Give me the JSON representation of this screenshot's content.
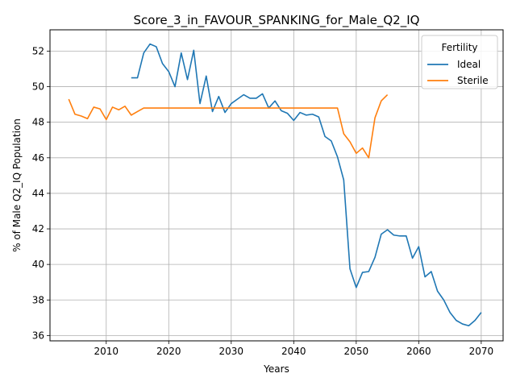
{
  "chart_data": {
    "type": "line",
    "title": "Score_3_in_FAVOUR_SPANKING_for_Male_Q2_IQ",
    "xlabel": "Years",
    "ylabel": "% of Male Q2_IQ Population",
    "xlim": [
      2001,
      2073.5
    ],
    "ylim": [
      35.7,
      53.2
    ],
    "xticks": [
      2010,
      2020,
      2030,
      2040,
      2050,
      2060,
      2070
    ],
    "yticks": [
      36,
      38,
      40,
      42,
      44,
      46,
      48,
      50,
      52
    ],
    "grid": true,
    "legend": {
      "title": "Fertility",
      "placement": "top-right"
    },
    "series": [
      {
        "name": "Ideal",
        "color": "#1f77b4",
        "x": [
          2014,
          2015,
          2016,
          2017,
          2018,
          2019,
          2020,
          2021,
          2022,
          2023,
          2024,
          2025,
          2026,
          2027,
          2028,
          2029,
          2030,
          2031,
          2032,
          2033,
          2034,
          2035,
          2036,
          2037,
          2038,
          2039,
          2040,
          2041,
          2042,
          2043,
          2044,
          2045,
          2046,
          2047,
          2048,
          2049,
          2050,
          2051,
          2052,
          2053,
          2054,
          2055,
          2056,
          2057,
          2058,
          2059,
          2060,
          2061,
          2062,
          2063,
          2064,
          2065,
          2066,
          2067,
          2068,
          2069,
          2070
        ],
        "y": [
          50.5,
          50.5,
          51.9,
          52.4,
          52.25,
          51.3,
          50.85,
          50.0,
          51.9,
          50.4,
          52.05,
          49.05,
          50.6,
          48.6,
          49.45,
          48.55,
          49.05,
          49.3,
          49.55,
          49.35,
          49.35,
          49.6,
          48.8,
          49.2,
          48.65,
          48.5,
          48.1,
          48.55,
          48.4,
          48.45,
          48.3,
          47.2,
          46.95,
          46.05,
          44.75,
          39.75,
          38.7,
          39.55,
          39.6,
          40.4,
          41.7,
          41.95,
          41.65,
          41.6,
          41.6,
          40.35,
          41.0,
          39.3,
          39.6,
          38.5,
          38.0,
          37.3,
          36.85,
          36.65,
          36.55,
          36.85,
          37.3
        ]
      },
      {
        "name": "Sterile",
        "color": "#ff7f0e",
        "x": [
          2004,
          2005,
          2006,
          2007,
          2008,
          2009,
          2010,
          2011,
          2012,
          2013,
          2014,
          2015,
          2016,
          2017,
          2018,
          2019,
          2020,
          2021,
          2022,
          2023,
          2024,
          2025,
          2026,
          2027,
          2028,
          2029,
          2030,
          2031,
          2032,
          2033,
          2034,
          2035,
          2036,
          2037,
          2038,
          2039,
          2040,
          2041,
          2042,
          2043,
          2044,
          2045,
          2046,
          2047,
          2048,
          2049,
          2050,
          2051,
          2052,
          2053,
          2054,
          2055
        ],
        "y": [
          49.3,
          48.45,
          48.35,
          48.2,
          48.85,
          48.75,
          48.15,
          48.85,
          48.7,
          48.9,
          48.4,
          48.6,
          48.8,
          48.8,
          48.8,
          48.8,
          48.8,
          48.8,
          48.8,
          48.8,
          48.8,
          48.8,
          48.8,
          48.8,
          48.8,
          48.8,
          48.8,
          48.8,
          48.8,
          48.8,
          48.8,
          48.8,
          48.8,
          48.8,
          48.8,
          48.8,
          48.8,
          48.8,
          48.8,
          48.8,
          48.8,
          48.8,
          48.8,
          48.8,
          47.35,
          46.9,
          46.25,
          46.55,
          46.0,
          48.25,
          49.2,
          49.55
        ]
      }
    ]
  }
}
